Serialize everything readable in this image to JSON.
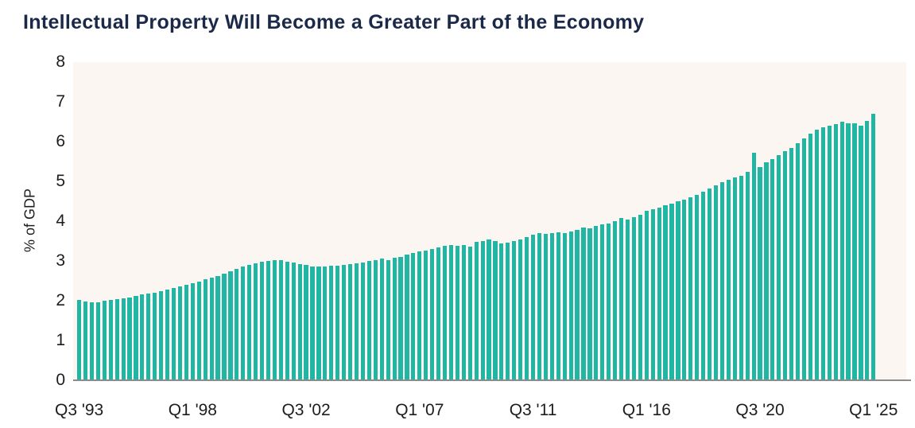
{
  "chart_data": {
    "type": "bar",
    "title": "Intellectual Property Will Become a Greater Part of the Economy",
    "ylabel": "% of GDP",
    "ylim": [
      0,
      8
    ],
    "yticks": [
      0,
      1,
      2,
      3,
      4,
      5,
      6,
      7,
      8
    ],
    "grid": "off",
    "legend": "none",
    "frequency": "quarterly",
    "x_start": "1993-Q3",
    "x_end": "2025-Q1",
    "x_ticks": [
      {
        "index": 0,
        "label": "Q3 '93"
      },
      {
        "index": 18,
        "label": "Q1 '98"
      },
      {
        "index": 36,
        "label": "Q3 '02"
      },
      {
        "index": 54,
        "label": "Q1 '07"
      },
      {
        "index": 72,
        "label": "Q3 '11"
      },
      {
        "index": 90,
        "label": "Q1 '16"
      },
      {
        "index": 108,
        "label": "Q3 '20"
      },
      {
        "index": 126,
        "label": "Q1 '25"
      }
    ],
    "values": [
      2.02,
      1.99,
      1.97,
      1.97,
      2.01,
      2.02,
      2.04,
      2.07,
      2.09,
      2.12,
      2.16,
      2.18,
      2.2,
      2.24,
      2.28,
      2.32,
      2.36,
      2.41,
      2.45,
      2.49,
      2.54,
      2.59,
      2.63,
      2.68,
      2.75,
      2.81,
      2.86,
      2.91,
      2.95,
      2.98,
      3.01,
      3.03,
      3.02,
      2.99,
      2.96,
      2.93,
      2.91,
      2.87,
      2.87,
      2.86,
      2.89,
      2.89,
      2.91,
      2.93,
      2.94,
      2.96,
      3.01,
      3.03,
      3.06,
      3.03,
      3.09,
      3.11,
      3.16,
      3.21,
      3.25,
      3.27,
      3.31,
      3.34,
      3.39,
      3.41,
      3.38,
      3.41,
      3.37,
      3.48,
      3.5,
      3.55,
      3.5,
      3.45,
      3.47,
      3.51,
      3.55,
      3.6,
      3.67,
      3.7,
      3.68,
      3.7,
      3.72,
      3.7,
      3.74,
      3.79,
      3.85,
      3.82,
      3.89,
      3.92,
      3.95,
      4.01,
      4.09,
      4.04,
      4.11,
      4.17,
      4.27,
      4.31,
      4.35,
      4.4,
      4.45,
      4.5,
      4.55,
      4.61,
      4.67,
      4.74,
      4.83,
      4.91,
      4.99,
      5.05,
      5.1,
      5.15,
      5.24,
      5.72,
      5.37,
      5.48,
      5.57,
      5.66,
      5.76,
      5.85,
      5.96,
      6.08,
      6.2,
      6.3,
      6.37,
      6.41,
      6.44,
      6.5,
      6.46,
      6.47,
      6.41,
      6.52,
      6.7
    ],
    "colors": {
      "bar": "#21b6a4",
      "plot_background": "#fcf6f3",
      "title_text": "#1b2948",
      "axis_line": "#8c8c8c",
      "tick_text": "#1d1d1d",
      "page_background": "#ffffff"
    }
  }
}
